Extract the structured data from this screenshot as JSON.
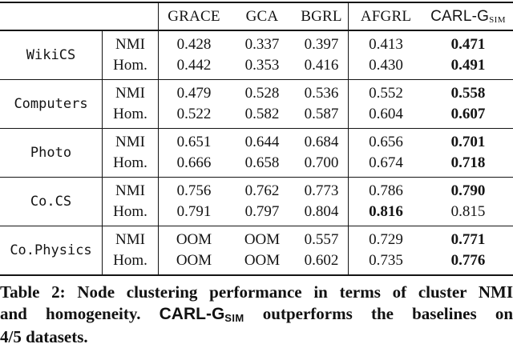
{
  "colors": {
    "text": "#141414",
    "background": "#ffffff",
    "rule": "#141414"
  },
  "table": {
    "header": {
      "grace": "GRACE",
      "gca": "GCA",
      "bgrl": "BGRL",
      "afgrl": "AFGRL",
      "carlg": "CARL-G",
      "carlg_sub": "SIM"
    },
    "sections": [
      {
        "dataset": "WikiCS",
        "rows": [
          {
            "metric": "NMI",
            "values": [
              "0.428",
              "0.337",
              "0.397",
              "0.413",
              "0.471"
            ],
            "bold": [
              false,
              false,
              false,
              false,
              true
            ]
          },
          {
            "metric": "Hom.",
            "values": [
              "0.442",
              "0.353",
              "0.416",
              "0.430",
              "0.491"
            ],
            "bold": [
              false,
              false,
              false,
              false,
              true
            ]
          }
        ]
      },
      {
        "dataset": "Computers",
        "rows": [
          {
            "metric": "NMI",
            "values": [
              "0.479",
              "0.528",
              "0.536",
              "0.552",
              "0.558"
            ],
            "bold": [
              false,
              false,
              false,
              false,
              true
            ]
          },
          {
            "metric": "Hom.",
            "values": [
              "0.522",
              "0.582",
              "0.587",
              "0.604",
              "0.607"
            ],
            "bold": [
              false,
              false,
              false,
              false,
              true
            ]
          }
        ]
      },
      {
        "dataset": "Photo",
        "rows": [
          {
            "metric": "NMI",
            "values": [
              "0.651",
              "0.644",
              "0.684",
              "0.656",
              "0.701"
            ],
            "bold": [
              false,
              false,
              false,
              false,
              true
            ]
          },
          {
            "metric": "Hom.",
            "values": [
              "0.666",
              "0.658",
              "0.700",
              "0.674",
              "0.718"
            ],
            "bold": [
              false,
              false,
              false,
              false,
              true
            ]
          }
        ]
      },
      {
        "dataset": "Co.CS",
        "rows": [
          {
            "metric": "NMI",
            "values": [
              "0.756",
              "0.762",
              "0.773",
              "0.786",
              "0.790"
            ],
            "bold": [
              false,
              false,
              false,
              false,
              true
            ]
          },
          {
            "metric": "Hom.",
            "values": [
              "0.791",
              "0.797",
              "0.804",
              "0.816",
              "0.815"
            ],
            "bold": [
              false,
              false,
              false,
              true,
              false
            ]
          }
        ]
      },
      {
        "dataset": "Co.Physics",
        "rows": [
          {
            "metric": "NMI",
            "values": [
              "OOM",
              "OOM",
              "0.557",
              "0.729",
              "0.771"
            ],
            "bold": [
              false,
              false,
              false,
              false,
              true
            ]
          },
          {
            "metric": "Hom.",
            "values": [
              "OOM",
              "OOM",
              "0.602",
              "0.735",
              "0.776"
            ],
            "bold": [
              false,
              false,
              false,
              false,
              true
            ]
          }
        ]
      }
    ]
  },
  "caption": {
    "line1": "Table 2: Node clustering performance in terms of cluster NMI",
    "line2_pre": "and homogeneity.",
    "method": "CARL-G",
    "method_sub": "SIM",
    "line2_post": "outperforms the baselines on",
    "line3": "4/5 datasets."
  }
}
